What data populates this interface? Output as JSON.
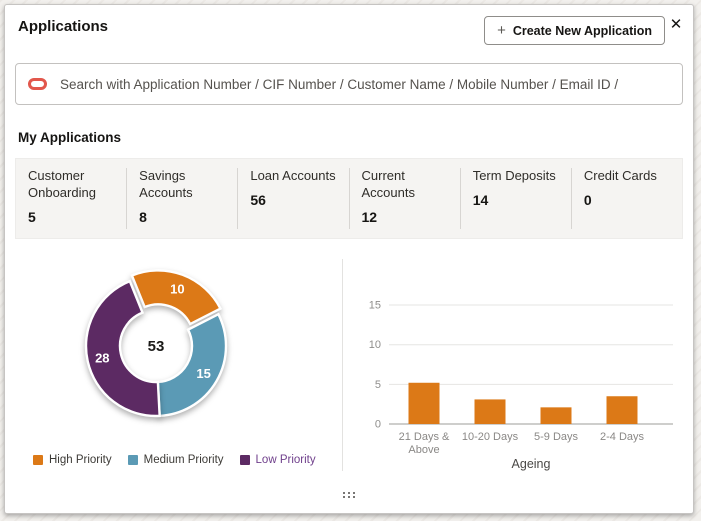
{
  "header": {
    "title": "Applications",
    "create_button": {
      "icon": "+",
      "label": "Create New Application"
    },
    "close_icon": "✕"
  },
  "search": {
    "placeholder": "Search with Application Number / CIF Number / Customer Name / Mobile Number / Email ID /",
    "logo_icon": "oracle-logo",
    "logo_color": "#E2574C"
  },
  "my_applications": {
    "heading": "My Applications",
    "stats": [
      {
        "label": "Customer Onboarding",
        "value": "5"
      },
      {
        "label": "Savings Accounts",
        "value": "8"
      },
      {
        "label": "Loan Accounts",
        "value": "56"
      },
      {
        "label": "Current Accounts",
        "value": "12"
      },
      {
        "label": "Term Deposits",
        "value": "14"
      },
      {
        "label": "Credit Cards",
        "value": "0"
      }
    ]
  },
  "chart_data": [
    {
      "type": "pie",
      "subtype": "donut",
      "center_total": "53",
      "slices": [
        {
          "label": "High Priority",
          "value": 10,
          "color": "#DC7917",
          "label_color": "#3c3a36"
        },
        {
          "label": "Medium Priority",
          "value": 15,
          "color": "#5B9AB5",
          "label_color": "#3c3a36"
        },
        {
          "label": "Low Priority",
          "value": 28,
          "color": "#5C2A63",
          "label_color": "#70408C"
        }
      ],
      "exploded_slice": "High Priority",
      "legend_position": "bottom"
    },
    {
      "type": "bar",
      "categories": [
        "21 Days & Above",
        "10-20 Days",
        "5-9 Days",
        "2-4 Days"
      ],
      "values": [
        5.2,
        3.1,
        2.1,
        3.5
      ],
      "xlabel": "Ageing",
      "ylabel": "",
      "ylim": [
        0,
        15
      ],
      "yticks": [
        0,
        5,
        10,
        15
      ],
      "bar_color": "#DC7917",
      "grid": "horizontal"
    }
  ],
  "footer": {
    "drag_handle_icon": "drag-dots"
  }
}
